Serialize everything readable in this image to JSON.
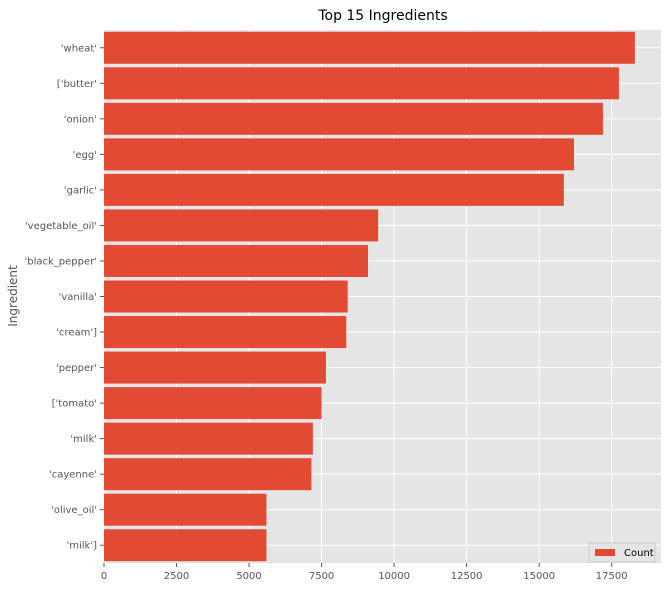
{
  "chart_data": {
    "type": "bar",
    "orientation": "horizontal",
    "title": "Top 15 Ingredients",
    "xlabel": "",
    "ylabel": "Ingredient",
    "categories": [
      "'wheat'",
      "['butter'",
      "'onion'",
      "'egg'",
      "'garlic'",
      "'vegetable_oil'",
      "'black_pepper'",
      "'vanilla'",
      "'cream']",
      "'pepper'",
      "['tomato'",
      "'milk'",
      "'cayenne'",
      "'olive_oil'",
      "'milk']"
    ],
    "series": [
      {
        "name": "Count",
        "values": [
          18300,
          17750,
          17200,
          16200,
          15850,
          9450,
          9100,
          8400,
          8350,
          7650,
          7500,
          7200,
          7150,
          5600,
          5600
        ]
      }
    ],
    "xlim": [
      0,
      19200
    ],
    "xticks": [
      0,
      2500,
      5000,
      7500,
      10000,
      12500,
      15000,
      17500
    ],
    "grid": true,
    "legend_position": "bottom-right"
  },
  "colors": {
    "bar": "#e24a33",
    "plot_background": "#e5e5e5",
    "grid": "#ffffff"
  }
}
